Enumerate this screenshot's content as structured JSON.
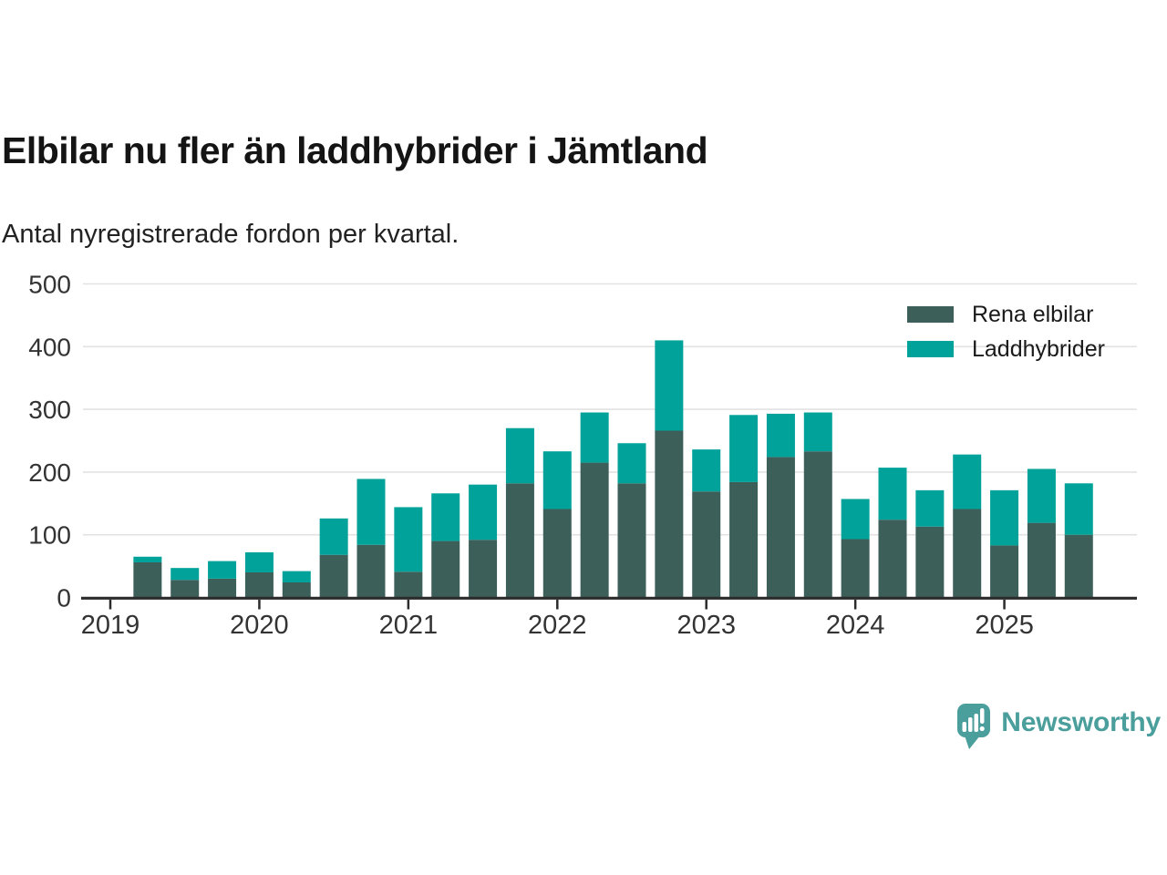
{
  "header": {
    "title": "Elbilar nu fler än laddhybrider i Jämtland",
    "subtitle": "Antal nyregistrerade fordon per kvartal."
  },
  "chart_data": {
    "type": "bar",
    "stacked": true,
    "title": "Elbilar nu fler än laddhybrider i Jämtland",
    "subtitle": "Antal nyregistrerade fordon per kvartal.",
    "categories": [
      "2019 K2",
      "2019 K3",
      "2019 K4",
      "2020 K1",
      "2020 K2",
      "2020 K3",
      "2020 K4",
      "2021 K1",
      "2021 K2",
      "2021 K3",
      "2021 K4",
      "2022 K1",
      "2022 K2",
      "2022 K3",
      "2022 K4",
      "2023 K1",
      "2023 K2",
      "2023 K3",
      "2023 K4",
      "2024 K1",
      "2024 K2",
      "2024 K3",
      "2024 K4",
      "2025 K1",
      "2025 K2",
      "2025 K3"
    ],
    "series": [
      {
        "name": "Rena elbilar",
        "color": "#3c5f5a",
        "values": [
          56,
          28,
          30,
          40,
          24,
          68,
          84,
          41,
          90,
          92,
          182,
          141,
          215,
          182,
          266,
          169,
          184,
          224,
          233,
          93,
          124,
          113,
          141,
          83,
          119,
          100
        ]
      },
      {
        "name": "Laddhybrider",
        "color": "#00a29a",
        "values": [
          9,
          19,
          28,
          32,
          18,
          58,
          105,
          103,
          76,
          88,
          88,
          92,
          80,
          64,
          144,
          67,
          107,
          69,
          62,
          64,
          83,
          58,
          87,
          88,
          86,
          82
        ]
      }
    ],
    "x_tick_labels": [
      "2019",
      "2020",
      "2021",
      "2022",
      "2023",
      "2024",
      "2025"
    ],
    "xlabel": "",
    "ylabel": "",
    "ylim": [
      0,
      500
    ],
    "yticks": [
      0,
      100,
      200,
      300,
      400,
      500
    ],
    "grid": "horizontal",
    "legend_position": "top-right"
  },
  "footer": {
    "brand": "Newsworthy"
  },
  "colors": {
    "series_dark": "#3c5f5a",
    "series_teal": "#00a29a",
    "axis_line": "#2b2b2b",
    "gridline": "#e2e2e2",
    "tick_text": "#333333",
    "brand": "#4a9e9b",
    "background": "#ffffff"
  }
}
